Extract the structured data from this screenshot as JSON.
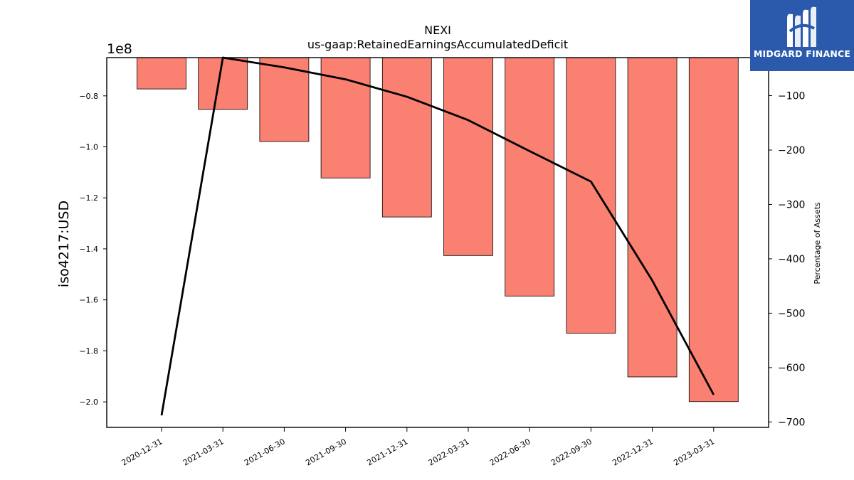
{
  "chart_data": {
    "type": "bar",
    "title": "NEXI",
    "subtitle": "us-gaap:RetainedEarningsAccumulatedDeficit",
    "ylabel": "iso4217:USD",
    "y2label": "Percentage of Assets",
    "y_offset_label": "1e8",
    "categories": [
      "2020-12-31",
      "2021-03-31",
      "2021-06-30",
      "2021-09-30",
      "2021-12-31",
      "2022-03-31",
      "2022-06-30",
      "2022-09-30",
      "2022-12-31",
      "2023-03-31"
    ],
    "series": [
      {
        "type": "bar",
        "values": [
          -77300000,
          -85300000,
          -97900000,
          -112200000,
          -127500000,
          -142600000,
          -158500000,
          -173100000,
          -190200000,
          -199900000
        ],
        "color": "#fa8072"
      },
      {
        "type": "line",
        "axis": "right",
        "values": [
          -688,
          -30,
          -48,
          -70,
          -102,
          -145,
          -202,
          -258,
          -440,
          -650
        ],
        "color": "#000000"
      }
    ],
    "ylim": [
      -210000000,
      -65000000
    ],
    "y2lim": [
      -710,
      -30
    ],
    "yticks": [
      -0.8,
      -1.0,
      -1.2,
      -1.4,
      -1.6,
      -1.8,
      -2.0
    ],
    "y2ticks": [
      -100,
      -200,
      -300,
      -400,
      -500,
      -600,
      -700
    ],
    "grid": false
  },
  "logo": {
    "text": "MIDGARD FINANCE"
  }
}
